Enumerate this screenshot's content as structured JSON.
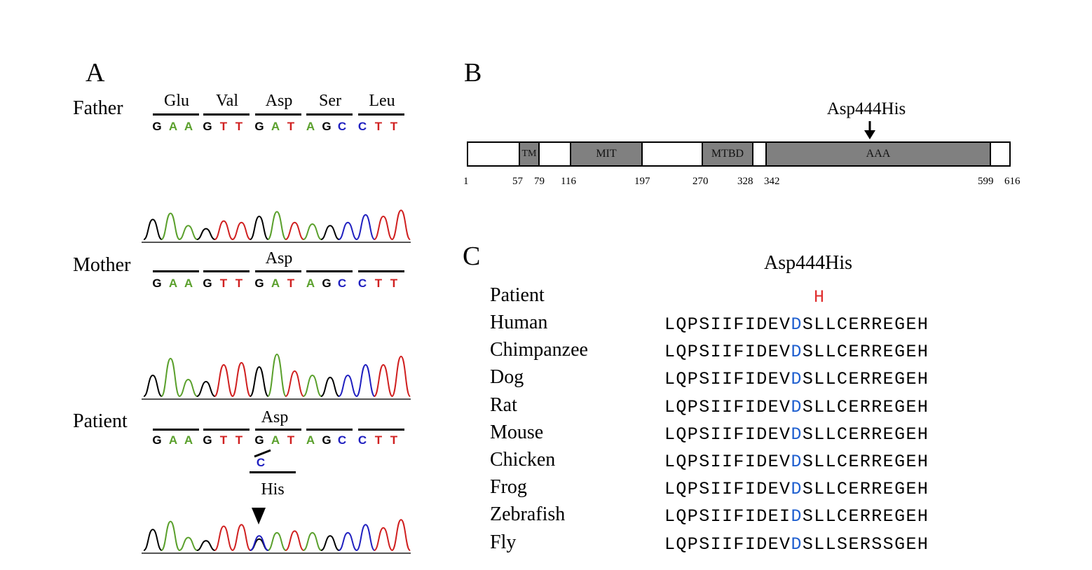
{
  "panel_a": {
    "letter": "A",
    "codons": [
      "Glu",
      "Val",
      "Asp",
      "Ser",
      "Leu"
    ],
    "bases": [
      "G",
      "A",
      "A",
      "G",
      "T",
      "T",
      "G",
      "A",
      "T",
      "A",
      "G",
      "C",
      "C",
      "T",
      "T"
    ],
    "colors": {
      "A": "#5aa02c",
      "C": "#2020c0",
      "G": "#000000",
      "T": "#d02020"
    },
    "father": {
      "label": "Father"
    },
    "mother": {
      "label": "Mother",
      "codon": "Asp"
    },
    "patient": {
      "label": "Patient",
      "codon": "Asp",
      "variant_base": "C",
      "variant_codon": "His"
    }
  },
  "panel_b": {
    "letter": "B",
    "mutation_label": "Asp444His",
    "protein_length": 616,
    "domains": [
      {
        "name": "TM",
        "start": 57,
        "end": 79
      },
      {
        "name": "MIT",
        "start": 116,
        "end": 197
      },
      {
        "name": "MTBD",
        "start": 270,
        "end": 328
      },
      {
        "name": "AAA",
        "start": 342,
        "end": 599
      }
    ],
    "positions": [
      "1",
      "57",
      "79",
      "116",
      "197",
      "270",
      "328",
      "342",
      "599",
      "616"
    ],
    "mutation_position": 444
  },
  "panel_c": {
    "letter": "C",
    "title": "Asp444His",
    "patient_label": "Patient",
    "patient_residue": "H",
    "rows": [
      {
        "species": "Human",
        "pre": "LQPSIIFIDEV",
        "site": "D",
        "post": "SLLCERREGEH"
      },
      {
        "species": "Chimpanzee",
        "pre": "LQPSIIFIDEV",
        "site": "D",
        "post": "SLLCERREGEH"
      },
      {
        "species": "Dog",
        "pre": "LQPSIIFIDEV",
        "site": "D",
        "post": "SLLCERREGEH"
      },
      {
        "species": "Rat",
        "pre": "LQPSIIFIDEV",
        "site": "D",
        "post": "SLLCERREGEH"
      },
      {
        "species": "Mouse",
        "pre": "LQPSIIFIDEV",
        "site": "D",
        "post": "SLLCERREGEH"
      },
      {
        "species": "Chicken",
        "pre": "LQPSIIFIDEV",
        "site": "D",
        "post": "SLLCERREGEH"
      },
      {
        "species": "Frog",
        "pre": "LQPSIIFIDEV",
        "site": "D",
        "post": "SLLCERREGEH"
      },
      {
        "species": "Zebrafish",
        "pre": "LQPSIIFIDEI",
        "site": "D",
        "post": "SLLCERREGEH"
      },
      {
        "species": "Fly",
        "pre": "LQPSIIFIDEV",
        "site": "D",
        "post": "SLLSERSSGEH"
      }
    ],
    "site_color": "#2060d0",
    "mutant_color": "#e03030"
  }
}
